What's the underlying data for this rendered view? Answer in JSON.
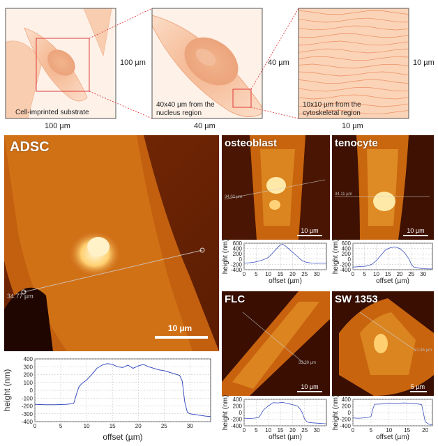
{
  "schematic": {
    "panel1": {
      "caption": "Cell-imprinted substrate",
      "side_label": "100 µm",
      "bottom_label": "100 µm"
    },
    "panel2": {
      "caption": "40x40 µm from the\nnucleus region",
      "side_label": "40 µm",
      "bottom_label": "40 µm"
    },
    "panel3": {
      "caption": "10x10 µm from the\ncytoskeletal region",
      "side_label": "10 µm",
      "bottom_label": "10 µm"
    }
  },
  "afm_images": {
    "adsc": {
      "title": "ADSC",
      "scale_bar": "10 µm",
      "line_label": "34.77 µm"
    },
    "osteoblast": {
      "title": "osteoblast",
      "scale_bar": "10 µm",
      "line_label": "34.02 µm"
    },
    "tenocyte": {
      "title": "tenocyte",
      "scale_bar": "10 µm",
      "line_label": "34.11 µm"
    },
    "flc": {
      "title": "FLC",
      "scale_bar": "10 µm",
      "line_label": "33.39 µm"
    },
    "sw1353": {
      "title": "SW 1353",
      "scale_bar": "5 µm",
      "line_label": "21.45 µm"
    }
  },
  "colors": {
    "afm_dark": "#2a0800",
    "afm_mid": "#c0500a",
    "afm_bright": "#ffcf6a",
    "profile_line": "#3a4fbf",
    "cell_fill": "#f7c8a4",
    "red_box": "#e03a3a"
  },
  "chart_data": [
    {
      "type": "line",
      "id": "adsc",
      "xlabel": "offset (µm)",
      "ylabel": "height (nm)",
      "xlim": [
        0,
        34
      ],
      "ylim": [
        -400,
        400
      ],
      "xticks": [
        "0",
        "5",
        "10",
        "15",
        "20",
        "25",
        "30"
      ],
      "yticks": [
        "-400",
        "-300",
        "-200",
        "-100",
        "0",
        "100",
        "200",
        "300",
        "400"
      ],
      "grid": true,
      "x": [
        0,
        2,
        4,
        6,
        7.5,
        8,
        8.5,
        9,
        10,
        11,
        12,
        13,
        14,
        15,
        16,
        17,
        18,
        19,
        20,
        21,
        22,
        23,
        24,
        25,
        26,
        27,
        28,
        28.5,
        29,
        29.5,
        30,
        31,
        32,
        33,
        34
      ],
      "y": [
        -180,
        -185,
        -185,
        -180,
        -170,
        -60,
        40,
        80,
        130,
        200,
        280,
        320,
        340,
        330,
        300,
        290,
        320,
        280,
        310,
        330,
        300,
        280,
        260,
        250,
        230,
        210,
        190,
        120,
        -150,
        -280,
        -300,
        -310,
        -320,
        -330,
        -335
      ]
    },
    {
      "type": "line",
      "id": "osteoblast",
      "xlabel": "offset (µm)",
      "ylabel": "height (nm)",
      "xlim": [
        0,
        34
      ],
      "ylim": [
        -400,
        600
      ],
      "xticks": [
        "0",
        "5",
        "10",
        "15",
        "20",
        "25",
        "30"
      ],
      "yticks": [
        "-400",
        "-200",
        "0",
        "200",
        "400",
        "600"
      ],
      "grid": true,
      "x": [
        0,
        2,
        4,
        6,
        8,
        10,
        12,
        14,
        15,
        16,
        17,
        18,
        20,
        22,
        24,
        26,
        28,
        30,
        32,
        34
      ],
      "y": [
        -150,
        -140,
        -120,
        -80,
        -20,
        60,
        250,
        450,
        540,
        560,
        500,
        420,
        260,
        100,
        -60,
        -130,
        -150,
        -160,
        -150,
        -160
      ]
    },
    {
      "type": "line",
      "id": "tenocyte",
      "xlabel": "offset (µm)",
      "ylabel": "height (nm)",
      "xlim": [
        0,
        34
      ],
      "ylim": [
        -400,
        600
      ],
      "xticks": [
        "0",
        "5",
        "10",
        "15",
        "20",
        "25",
        "30"
      ],
      "yticks": [
        "-400",
        "-200",
        "0",
        "200",
        "400",
        "600"
      ],
      "grid": true,
      "x": [
        0,
        2,
        4,
        6,
        8,
        10,
        12,
        14,
        16,
        18,
        20,
        22,
        24,
        25,
        26,
        28,
        30,
        32,
        34
      ],
      "y": [
        -300,
        -290,
        -280,
        -260,
        -200,
        -60,
        150,
        350,
        430,
        460,
        400,
        250,
        0,
        -200,
        -300,
        -340,
        -360,
        -370,
        -370
      ]
    },
    {
      "type": "line",
      "id": "flc",
      "xlabel": "offset (µm)",
      "ylabel": "height (nm)",
      "xlim": [
        0,
        34
      ],
      "ylim": [
        -400,
        400
      ],
      "xticks": [
        "0",
        "5",
        "10",
        "15",
        "20",
        "25",
        "30"
      ],
      "yticks": [
        "-400",
        "-200",
        "0",
        "200",
        "400"
      ],
      "grid": true,
      "x": [
        0,
        2,
        4,
        6,
        7,
        8,
        10,
        12,
        14,
        16,
        18,
        20,
        22,
        23,
        24,
        25,
        26,
        27,
        28,
        30,
        32,
        34
      ],
      "y": [
        -170,
        -180,
        -170,
        -150,
        -50,
        80,
        200,
        300,
        290,
        310,
        270,
        240,
        200,
        120,
        0,
        -200,
        -280,
        -300,
        -310,
        -320,
        -330,
        -340
      ]
    },
    {
      "type": "line",
      "id": "sw1353",
      "xlabel": "offset (µm)",
      "ylabel": "height (nm)",
      "xlim": [
        0,
        22
      ],
      "ylim": [
        -400,
        400
      ],
      "xticks": [
        "0",
        "5",
        "10",
        "15",
        "20"
      ],
      "yticks": [
        "-400",
        "-200",
        "0",
        "200",
        "400"
      ],
      "grid": true,
      "x": [
        0,
        1,
        2,
        3,
        4,
        5,
        5.5,
        6,
        8,
        10,
        12,
        14,
        16,
        18,
        19,
        19.5,
        20,
        21,
        22
      ],
      "y": [
        -160,
        -170,
        -170,
        -160,
        -150,
        -120,
        100,
        250,
        260,
        280,
        270,
        290,
        280,
        260,
        240,
        0,
        -280,
        -350,
        -380
      ]
    }
  ]
}
